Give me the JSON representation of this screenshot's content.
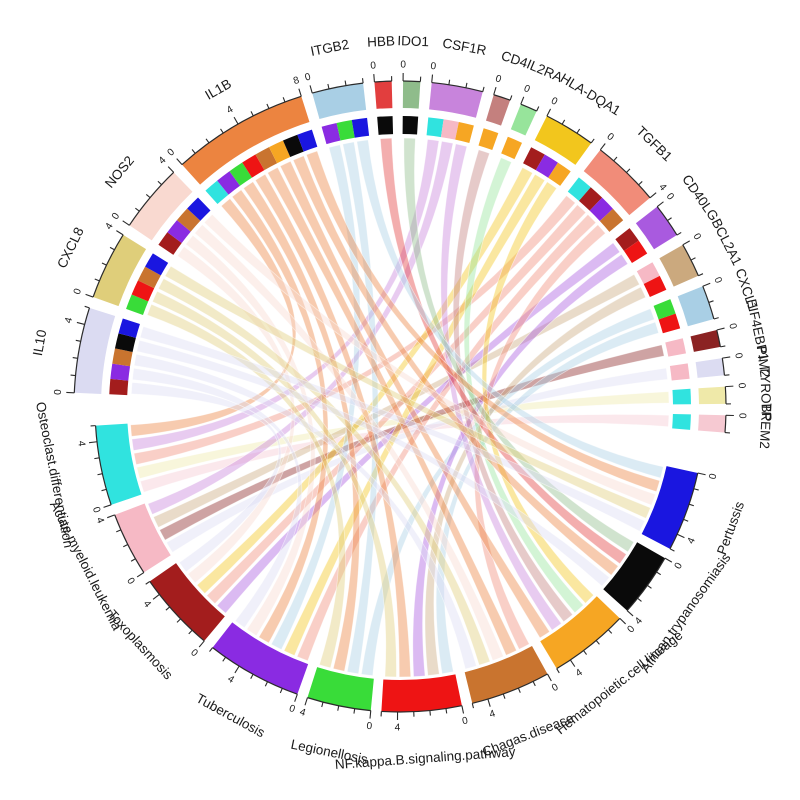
{
  "figure": {
    "kind": "gene-pathway chord diagram",
    "background": "#ffffff",
    "text_color": "#1a1a1a",
    "axis_color": "#2b2b2b"
  },
  "chart_data": {
    "type": "chord",
    "title": "",
    "unit": "gene-pathway membership links (1 unit each)",
    "axis": {
      "minor_tick_every": 1,
      "major_tick_every": 4,
      "tick_labels": [
        "0",
        "4",
        "8"
      ]
    },
    "legend_position": "none",
    "grid": false,
    "genes": [
      {
        "name": "IL10",
        "color": "#DBDBF2",
        "total": 5,
        "links": [
          "Toxoplasmosis",
          "Tuberculosis",
          "Chagas.disease",
          "African.trypanosomiasis",
          "Pertussis"
        ]
      },
      {
        "name": "CXCL8",
        "color": "#DFCE7A",
        "total": 4,
        "links": [
          "Legionellosis",
          "NF.kappa.B.signaling.pathway",
          "Chagas.disease",
          "Pertussis"
        ]
      },
      {
        "name": "NOS2",
        "color": "#F9D9D0",
        "total": 4,
        "links": [
          "Toxoplasmosis",
          "Tuberculosis",
          "Chagas.disease",
          "Pertussis"
        ]
      },
      {
        "name": "IL1B",
        "color": "#EC8440",
        "total": 8,
        "links": [
          "Osteoclast.differentiation",
          "Tuberculosis",
          "Legionellosis",
          "NF.kappa.B.signaling.pathway",
          "Chagas.disease",
          "Hematopoietic.cell.lineage",
          "African.trypanosomiasis",
          "Pertussis"
        ]
      },
      {
        "name": "ITGB2",
        "color": "#A9CFE5",
        "total": 3,
        "links": [
          "Tuberculosis",
          "Legionellosis",
          "Pertussis"
        ]
      },
      {
        "name": "HBB",
        "color": "#E23E3E",
        "total": 1,
        "links": [
          "African.trypanosomiasis"
        ]
      },
      {
        "name": "IDO1",
        "color": "#8FBC8B",
        "total": 1,
        "links": [
          "African.trypanosomiasis"
        ]
      },
      {
        "name": "CSF1R",
        "color": "#C884DC",
        "total": 3,
        "links": [
          "Osteoclast.differentiation",
          "Acute.myeloid.leukemia",
          "Hematopoietic.cell.lineage"
        ]
      },
      {
        "name": "CD4",
        "color": "#C4807E",
        "total": 1,
        "links": [
          "Hematopoietic.cell.lineage"
        ]
      },
      {
        "name": "IL2RA",
        "color": "#97E49B",
        "total": 1,
        "links": [
          "Hematopoietic.cell.lineage"
        ]
      },
      {
        "name": "HLA-DQA1",
        "color": "#F2C61D",
        "total": 3,
        "links": [
          "Toxoplasmosis",
          "Tuberculosis",
          "Hematopoietic.cell.lineage"
        ]
      },
      {
        "name": "TGFB1",
        "color": "#F18C79",
        "total": 4,
        "links": [
          "Osteoclast.differentiation",
          "Toxoplasmosis",
          "Tuberculosis",
          "Chagas.disease"
        ]
      },
      {
        "name": "CD40LG",
        "color": "#A95ADF",
        "total": 2,
        "links": [
          "Toxoplasmosis",
          "NF.kappa.B.signaling.pathway"
        ]
      },
      {
        "name": "BCL2A1",
        "color": "#CBA97E",
        "total": 2,
        "links": [
          "Acute.myeloid.leukemia",
          "NF.kappa.B.signaling.pathway"
        ]
      },
      {
        "name": "CXCL1",
        "color": "#A9CFE5",
        "total": 2,
        "links": [
          "Legionellosis",
          "NF.kappa.B.signaling.pathway"
        ]
      },
      {
        "name": "EIF4EBP1",
        "color": "#8B2323",
        "total": 1,
        "links": [
          "Acute.myeloid.leukemia"
        ]
      },
      {
        "name": "PIM2",
        "color": "#DCDCF2",
        "total": 1,
        "links": [
          "Acute.myeloid.leukemia"
        ]
      },
      {
        "name": "TYROBP",
        "color": "#EFE9A9",
        "total": 1,
        "links": [
          "Osteoclast.differentiation"
        ]
      },
      {
        "name": "TREM2",
        "color": "#F6C9D2",
        "total": 1,
        "links": [
          "Osteoclast.differentiation"
        ]
      }
    ],
    "pathways": [
      {
        "name": "Pertussis",
        "color": "#1A16E0",
        "total": 5
      },
      {
        "name": "African.trypanosomiasis",
        "color": "#0A0A0A",
        "total": 4
      },
      {
        "name": "Hematopoietic.cell.lineage",
        "color": "#F6A623",
        "total": 5
      },
      {
        "name": "Chagas.disease",
        "color": "#C9742F",
        "total": 5
      },
      {
        "name": "NF.kappa.B.signaling.pathway",
        "color": "#EE1414",
        "total": 5
      },
      {
        "name": "Legionellosis",
        "color": "#39DC39",
        "total": 4
      },
      {
        "name": "Tuberculosis",
        "color": "#8A2BE2",
        "total": 6
      },
      {
        "name": "Toxoplasmosis",
        "color": "#A31D1D",
        "total": 5
      },
      {
        "name": "Acute.myeloid.leukemia",
        "color": "#F6B9C5",
        "total": 4
      },
      {
        "name": "Osteoclast.differentiation",
        "color": "#30E3DF",
        "total": 5
      }
    ]
  }
}
